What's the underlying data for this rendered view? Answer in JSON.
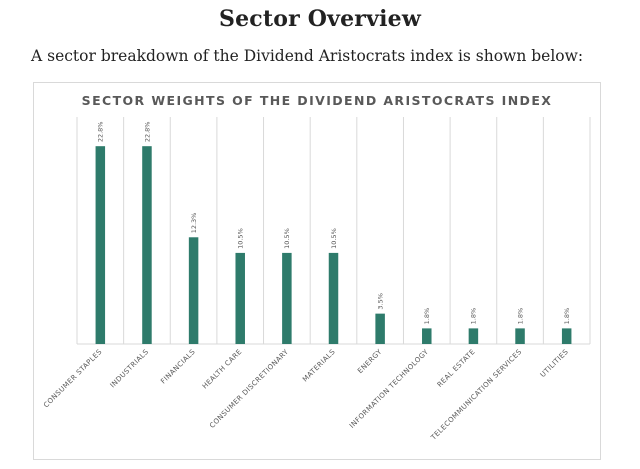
{
  "page": {
    "heading": "Sector Overview",
    "intro": "A sector breakdown of the Dividend Aristocrats index is shown below:"
  },
  "colors": {
    "bar": "#2e7b6b",
    "grid": "#d9d9d9",
    "text": "#595959"
  },
  "chart_data": {
    "type": "bar",
    "title": "SECTOR WEIGHTS OF THE DIVIDEND ARISTOCRATS INDEX",
    "xlabel": "",
    "ylabel": "",
    "ylim": [
      0,
      25
    ],
    "grid": true,
    "categories": [
      "CONSUMER STAPLES",
      "INDUSTRIALS",
      "FINANCIALS",
      "HEALTH CARE",
      "CONSUMER DISCRETIONARY",
      "MATERIALS",
      "ENERGY",
      "INFORMATION TECHNOLOGY",
      "REAL ESTATE",
      "TELECOMMUNICATION SERVICES",
      "UTILITIES"
    ],
    "values": [
      22.8,
      22.8,
      12.3,
      10.5,
      10.5,
      10.5,
      3.5,
      1.8,
      1.8,
      1.8,
      1.8
    ],
    "value_labels": [
      "22.8%",
      "22.8%",
      "12.3%",
      "10.5%",
      "10.5%",
      "10.5%",
      "3.5%",
      "1.8%",
      "1.8%",
      "1.8%",
      "1.8%"
    ]
  }
}
